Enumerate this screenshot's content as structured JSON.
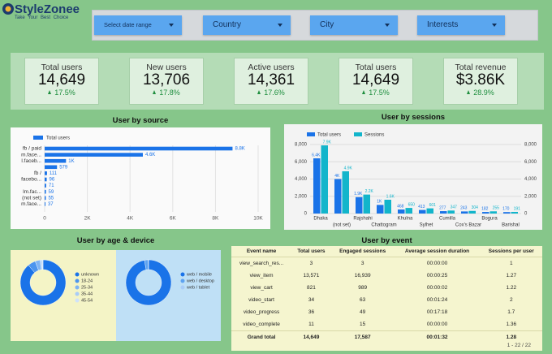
{
  "header": {
    "brand": "StyleZonee",
    "tagline": "Take Your Best Choice"
  },
  "filters": [
    "Select date range",
    "Country",
    "City",
    "Interests"
  ],
  "kpis": [
    {
      "label": "Total users",
      "value": "14,649",
      "change": "17.5%"
    },
    {
      "label": "New users",
      "value": "13,706",
      "change": "17.8%"
    },
    {
      "label": "Active users",
      "value": "14,361",
      "change": "17.6%"
    },
    {
      "label": "Total users",
      "value": "14,649",
      "change": "17.5%"
    },
    {
      "label": "Total revenue",
      "value": "$3.86K",
      "change": "28.9%"
    }
  ],
  "chart_data": [
    {
      "type": "hbar",
      "title": "User by source",
      "categories": [
        "fb / paid",
        "m.face...",
        "l.faceb...",
        null,
        "fb /",
        "facebo...",
        null,
        "lm.fac...",
        "(not set)",
        "m.face..."
      ],
      "series": [
        {
          "name": "Total users",
          "color": "#1a73e8",
          "values": [
            8800,
            4600,
            1000,
            579,
            111,
            96,
            71,
            59,
            55,
            37
          ],
          "value_labels": [
            "8.8K",
            "4.6K",
            "1K",
            "579",
            "111",
            "96",
            "71",
            "59",
            "55",
            "37"
          ]
        }
      ],
      "xlim": [
        0,
        10000
      ],
      "xticks": [
        0,
        {
          "value": 2000,
          "label": "2K"
        },
        {
          "value": 4000,
          "label": "4K"
        },
        {
          "value": 6000,
          "label": "6K"
        },
        {
          "value": 8000,
          "label": "8K"
        },
        {
          "value": 10000,
          "label": "10K"
        }
      ],
      "grid": true
    },
    {
      "type": "bar",
      "title": "User by sessions",
      "categories": [
        "Dhaka",
        "(not set)",
        "Rajshahi",
        "Chattogram",
        "Khulna",
        "Sylhet",
        "Cumilla",
        "Cox's Bazar",
        "Bogura",
        "Barishal"
      ],
      "series": [
        {
          "name": "Total users",
          "color": "#1a73e8",
          "values": [
            6400,
            4000,
            1900,
            1000,
            468,
            413,
            277,
            243,
            182,
            170
          ],
          "value_labels": [
            "6.4K",
            "4K",
            "1.9K",
            "1K",
            "468",
            "413",
            "277",
            "243",
            "182",
            "170"
          ]
        },
        {
          "name": "Sessions",
          "color": "#12b5cb",
          "axis": "y2",
          "values": [
            7900,
            4900,
            2200,
            1600,
            650,
            601,
            347,
            304,
            255,
            191
          ],
          "value_labels": [
            "7.9K",
            "4.9K",
            "2.2K",
            "1.6K",
            "650",
            "601",
            "347",
            "304",
            "255",
            "191"
          ]
        }
      ],
      "ylim": [
        0,
        8000
      ],
      "yticks": [
        0,
        {
          "value": 2000,
          "label": "2,000"
        },
        {
          "value": 4000,
          "label": "4,000"
        },
        {
          "value": 6000,
          "label": "6,000"
        },
        {
          "value": 8000,
          "label": "8,000"
        }
      ],
      "y2lim": [
        0,
        8000
      ],
      "y2ticks": [
        0,
        {
          "value": 2000,
          "label": "2,000"
        },
        {
          "value": 4000,
          "label": "4,000"
        },
        {
          "value": 6000,
          "label": "6,000"
        },
        {
          "value": 8000,
          "label": "8,000"
        }
      ],
      "grid": true
    },
    {
      "type": "donut",
      "title": "User by age & device",
      "categories": [
        "unknown",
        "18-24",
        "25-34",
        "35-44",
        "45-54"
      ],
      "values": [
        88.9,
        5.5,
        3.5,
        1.3,
        0.8
      ],
      "colors": [
        "#1a73e8",
        "#4c95ee",
        "#7eb4f3",
        "#a9ccf7",
        "#cfe2fb"
      ]
    },
    {
      "type": "donut",
      "categories": [
        "web / mobile",
        "web / desktop",
        "web / tablet"
      ],
      "values": [
        97.1,
        2.7,
        0.2
      ],
      "colors": [
        "#1a73e8",
        "#5ea2f0",
        "#a9ccf7"
      ]
    }
  ],
  "table": {
    "title": "User by event",
    "columns": [
      "Event name",
      "Total users",
      "Engaged sessions",
      "Average session duration",
      "Sessions per user"
    ],
    "rows": [
      [
        "view_search_res...",
        "3",
        "3",
        "00:00:00",
        "1"
      ],
      [
        "view_item",
        "13,571",
        "16,939",
        "00:00:25",
        "1.27"
      ],
      [
        "view_cart",
        "821",
        "989",
        "00:00:02",
        "1.22"
      ],
      [
        "video_start",
        "34",
        "63",
        "00:01:24",
        "2"
      ],
      [
        "video_progress",
        "36",
        "49",
        "00:17:18",
        "1.7"
      ],
      [
        "video_complete",
        "11",
        "15",
        "00:00:00",
        "1.36"
      ]
    ],
    "total": [
      "Grand total",
      "14,649",
      "17,587",
      "00:01:32",
      "1.28"
    ],
    "pagination": "1 - 22 / 22"
  }
}
